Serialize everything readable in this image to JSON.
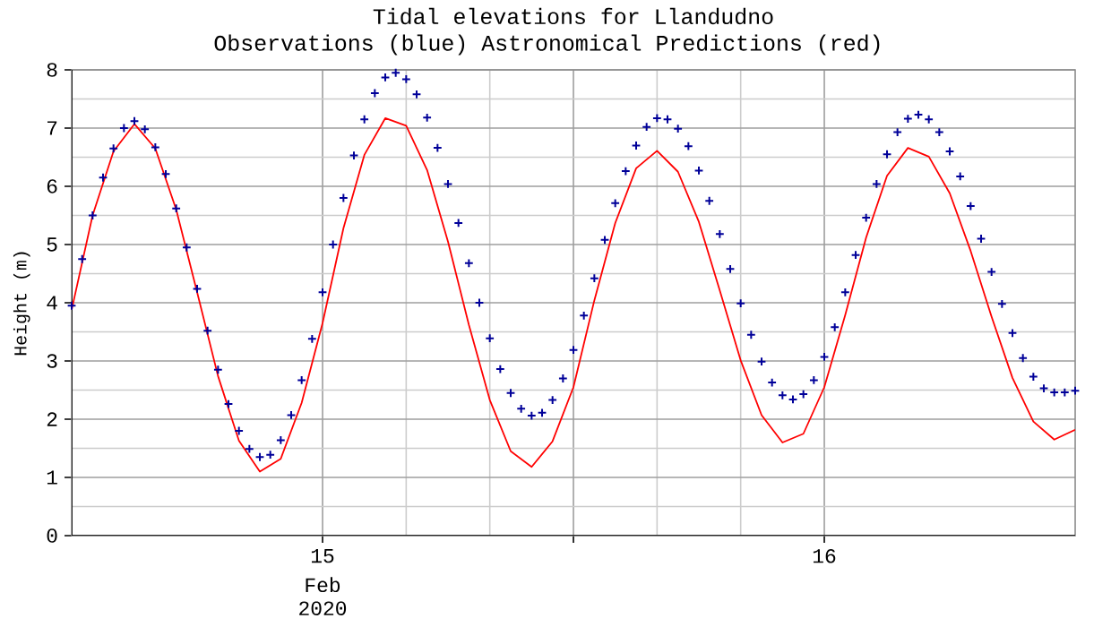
{
  "chart_data": {
    "type": "line",
    "title": "Tidal elevations for Llandudno",
    "subtitle": "Observations (blue)      Astronomical Predictions (red)",
    "ylabel": "Height (m)",
    "xlabel": "Feb 2020",
    "xlim": [
      "2020-02-14T12:00",
      "2020-02-16T12:00"
    ],
    "xticks": [
      {
        "value": "2020-02-15",
        "label": "15"
      },
      {
        "value": "2020-02-15T12:00",
        "label": null
      },
      {
        "value": "2020-02-16",
        "label": "16"
      }
    ],
    "ylim": [
      0,
      8
    ],
    "yticks": [
      0,
      1,
      2,
      3,
      4,
      5,
      6,
      7,
      8
    ],
    "grid": true,
    "series": [
      {
        "type": "scatter",
        "marker": "cross",
        "color": "#000099",
        "x": [
          "2020-02-14T12:00",
          "2020-02-14T12:30",
          "2020-02-14T13:00",
          "2020-02-14T13:30",
          "2020-02-14T14:00",
          "2020-02-14T14:30",
          "2020-02-14T15:00",
          "2020-02-14T15:30",
          "2020-02-14T16:00",
          "2020-02-14T16:30",
          "2020-02-14T17:00",
          "2020-02-14T17:30",
          "2020-02-14T18:00",
          "2020-02-14T18:30",
          "2020-02-14T19:00",
          "2020-02-14T19:30",
          "2020-02-14T20:00",
          "2020-02-14T20:30",
          "2020-02-14T21:00",
          "2020-02-14T21:30",
          "2020-02-14T22:00",
          "2020-02-14T22:30",
          "2020-02-14T23:00",
          "2020-02-14T23:30",
          "2020-02-15T00:00",
          "2020-02-15T00:30",
          "2020-02-15T01:00",
          "2020-02-15T01:30",
          "2020-02-15T02:00",
          "2020-02-15T02:30",
          "2020-02-15T03:00",
          "2020-02-15T03:30",
          "2020-02-15T04:00",
          "2020-02-15T04:30",
          "2020-02-15T05:00",
          "2020-02-15T05:30",
          "2020-02-15T06:00",
          "2020-02-15T06:30",
          "2020-02-15T07:00",
          "2020-02-15T07:30",
          "2020-02-15T08:00",
          "2020-02-15T08:30",
          "2020-02-15T09:00",
          "2020-02-15T09:30",
          "2020-02-15T10:00",
          "2020-02-15T10:30",
          "2020-02-15T11:00",
          "2020-02-15T11:30",
          "2020-02-15T12:00",
          "2020-02-15T12:30",
          "2020-02-15T13:00",
          "2020-02-15T13:30",
          "2020-02-15T14:00",
          "2020-02-15T14:30",
          "2020-02-15T15:00",
          "2020-02-15T15:30",
          "2020-02-15T16:00",
          "2020-02-15T16:30",
          "2020-02-15T17:00",
          "2020-02-15T17:30",
          "2020-02-15T18:00",
          "2020-02-15T18:30",
          "2020-02-15T19:00",
          "2020-02-15T19:30",
          "2020-02-15T20:00",
          "2020-02-15T20:30",
          "2020-02-15T21:00",
          "2020-02-15T21:30",
          "2020-02-15T22:00",
          "2020-02-15T22:30",
          "2020-02-15T23:00",
          "2020-02-15T23:30",
          "2020-02-16T00:00",
          "2020-02-16T00:30",
          "2020-02-16T01:00",
          "2020-02-16T01:30",
          "2020-02-16T02:00",
          "2020-02-16T02:30",
          "2020-02-16T03:00",
          "2020-02-16T03:30",
          "2020-02-16T04:00",
          "2020-02-16T04:30",
          "2020-02-16T05:00",
          "2020-02-16T05:30",
          "2020-02-16T06:00",
          "2020-02-16T06:30",
          "2020-02-16T07:00",
          "2020-02-16T07:30",
          "2020-02-16T08:00",
          "2020-02-16T08:30",
          "2020-02-16T09:00",
          "2020-02-16T09:30",
          "2020-02-16T10:00",
          "2020-02-16T10:30",
          "2020-02-16T11:00",
          "2020-02-16T11:30",
          "2020-02-16T12:00"
        ],
        "values": [
          3.95,
          4.75,
          5.5,
          6.15,
          6.65,
          7.0,
          7.12,
          6.98,
          6.67,
          6.21,
          5.62,
          4.95,
          4.24,
          3.52,
          2.85,
          2.26,
          1.8,
          1.49,
          1.35,
          1.39,
          1.64,
          2.07,
          2.67,
          3.38,
          4.18,
          5.0,
          5.8,
          6.53,
          7.15,
          7.6,
          7.87,
          7.95,
          7.84,
          7.58,
          7.18,
          6.66,
          6.04,
          5.37,
          4.68,
          4.0,
          3.39,
          2.86,
          2.45,
          2.18,
          2.06,
          2.11,
          2.33,
          2.7,
          3.19,
          3.78,
          4.42,
          5.08,
          5.71,
          6.26,
          6.7,
          7.02,
          7.17,
          7.15,
          6.99,
          6.69,
          6.27,
          5.75,
          5.18,
          4.58,
          3.99,
          3.45,
          2.99,
          2.63,
          2.41,
          2.34,
          2.43,
          2.67,
          3.07,
          3.58,
          4.18,
          4.82,
          5.46,
          6.04,
          6.55,
          6.93,
          7.16,
          7.23,
          7.15,
          6.93,
          6.6,
          6.17,
          5.66,
          5.1,
          4.53,
          3.98,
          3.48,
          3.05,
          2.73,
          2.53,
          2.46,
          2.46,
          2.49
        ]
      },
      {
        "color": "#ff0000",
        "x": [
          "2020-02-14T12:00",
          "2020-02-14T13:00",
          "2020-02-14T14:00",
          "2020-02-14T15:00",
          "2020-02-14T16:00",
          "2020-02-14T17:00",
          "2020-02-14T18:00",
          "2020-02-14T19:00",
          "2020-02-14T20:00",
          "2020-02-14T21:00",
          "2020-02-14T22:00",
          "2020-02-14T23:00",
          "2020-02-15T00:00",
          "2020-02-15T01:00",
          "2020-02-15T02:00",
          "2020-02-15T03:00",
          "2020-02-15T04:00",
          "2020-02-15T05:00",
          "2020-02-15T06:00",
          "2020-02-15T07:00",
          "2020-02-15T08:00",
          "2020-02-15T09:00",
          "2020-02-15T10:00",
          "2020-02-15T11:00",
          "2020-02-15T12:00",
          "2020-02-15T13:00",
          "2020-02-15T14:00",
          "2020-02-15T15:00",
          "2020-02-15T16:00",
          "2020-02-15T17:00",
          "2020-02-15T18:00",
          "2020-02-15T19:00",
          "2020-02-15T20:00",
          "2020-02-15T21:00",
          "2020-02-15T22:00",
          "2020-02-15T23:00",
          "2020-02-16T00:00",
          "2020-02-16T01:00",
          "2020-02-16T02:00",
          "2020-02-16T03:00",
          "2020-02-16T04:00",
          "2020-02-16T05:00",
          "2020-02-16T06:00",
          "2020-02-16T07:00",
          "2020-02-16T08:00",
          "2020-02-16T09:00",
          "2020-02-16T10:00",
          "2020-02-16T11:00",
          "2020-02-16T12:00"
        ],
        "values": [
          3.88,
          5.5,
          6.6,
          7.07,
          6.65,
          5.6,
          4.18,
          2.74,
          1.63,
          1.1,
          1.32,
          2.28,
          3.65,
          5.28,
          6.54,
          7.17,
          7.04,
          6.28,
          5.05,
          3.62,
          2.33,
          1.45,
          1.18,
          1.62,
          2.55,
          4.04,
          5.37,
          6.31,
          6.61,
          6.25,
          5.39,
          4.21,
          3.01,
          2.07,
          1.6,
          1.75,
          2.55,
          3.79,
          5.12,
          6.18,
          6.66,
          6.51,
          5.88,
          4.89,
          3.76,
          2.71,
          1.96,
          1.65,
          1.82
        ]
      }
    ]
  }
}
